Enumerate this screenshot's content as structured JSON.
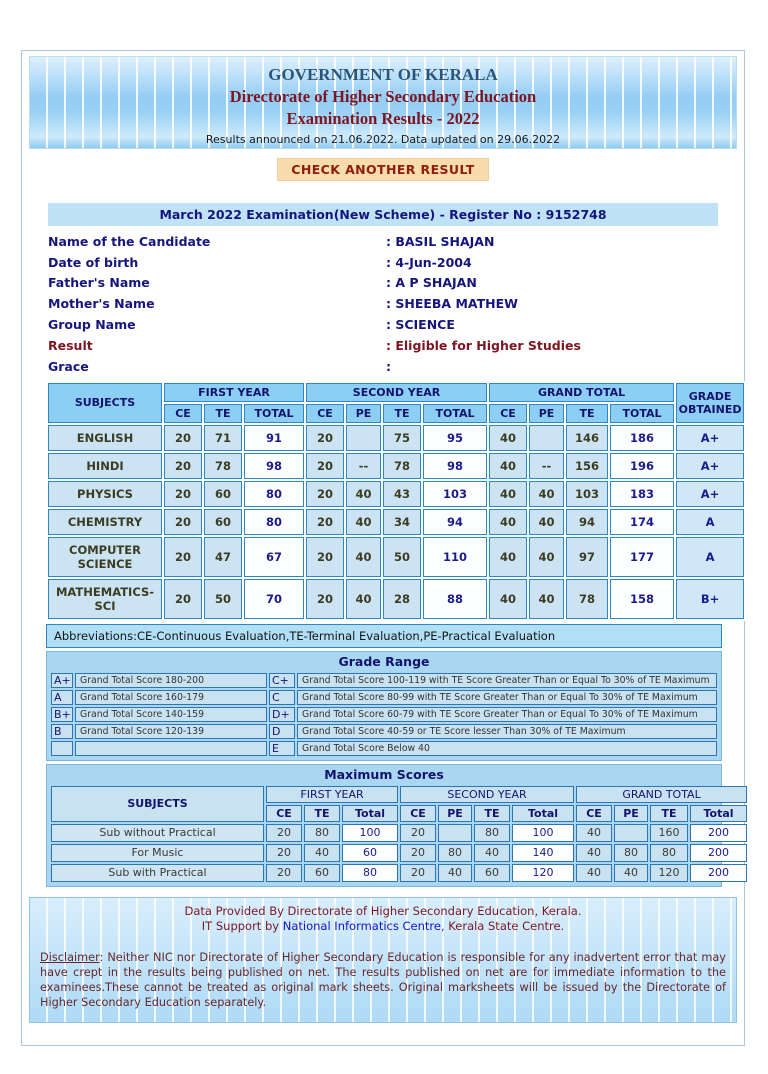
{
  "header": {
    "title1": "GOVERNMENT OF KERALA",
    "title2": "Directorate of Higher Secondary Education",
    "title3": "Examination Results - 2022",
    "announcement": "Results announced on 21.06.2022. Data updated on 29.06.2022"
  },
  "check_button_label": "CHECK ANOTHER RESULT",
  "register_bar": "March 2022 Examination(New Scheme) - Register No : 9152748",
  "details": {
    "rows": [
      {
        "label": "Name of the Candidate",
        "value": "BASIL SHAJAN",
        "accent": false
      },
      {
        "label": "Date of birth",
        "value": "4-Jun-2004",
        "accent": false
      },
      {
        "label": "Father's Name",
        "value": "A P SHAJAN",
        "accent": false
      },
      {
        "label": "Mother's Name",
        "value": "SHEEBA MATHEW",
        "accent": false
      },
      {
        "label": "Group Name",
        "value": "SCIENCE",
        "accent": false
      },
      {
        "label": "Result",
        "value": "Eligible for Higher Studies",
        "accent": true
      },
      {
        "label": "Grace",
        "value": "",
        "accent": false
      }
    ]
  },
  "subjects_table": {
    "subjects_header": "SUBJECTS",
    "grade_header": "GRADE OBTAINED",
    "groups": [
      {
        "label": "FIRST YEAR",
        "cols": [
          "CE",
          "TE",
          "TOTAL"
        ]
      },
      {
        "label": "SECOND YEAR",
        "cols": [
          "CE",
          "PE",
          "TE",
          "TOTAL"
        ]
      },
      {
        "label": "GRAND TOTAL",
        "cols": [
          "CE",
          "PE",
          "TE",
          "TOTAL"
        ]
      }
    ],
    "total_indices": [
      2,
      6,
      10
    ],
    "rows": [
      {
        "subject": "ENGLISH",
        "cells": [
          "20",
          "71",
          "91",
          "20",
          "",
          "75",
          "95",
          "40",
          "",
          "146",
          "186"
        ],
        "grade": "A+"
      },
      {
        "subject": "HINDI",
        "cells": [
          "20",
          "78",
          "98",
          "20",
          "--",
          "78",
          "98",
          "40",
          "--",
          "156",
          "196"
        ],
        "grade": "A+"
      },
      {
        "subject": "PHYSICS",
        "cells": [
          "20",
          "60",
          "80",
          "20",
          "40",
          "43",
          "103",
          "40",
          "40",
          "103",
          "183"
        ],
        "grade": "A+"
      },
      {
        "subject": "CHEMISTRY",
        "cells": [
          "20",
          "60",
          "80",
          "20",
          "40",
          "34",
          "94",
          "40",
          "40",
          "94",
          "174"
        ],
        "grade": "A"
      },
      {
        "subject": "COMPUTER SCIENCE",
        "cells": [
          "20",
          "47",
          "67",
          "20",
          "40",
          "50",
          "110",
          "40",
          "40",
          "97",
          "177"
        ],
        "grade": "A"
      },
      {
        "subject": "MATHEMATICS-SCI",
        "cells": [
          "20",
          "50",
          "70",
          "20",
          "40",
          "28",
          "88",
          "40",
          "40",
          "78",
          "158"
        ],
        "grade": "B+"
      }
    ]
  },
  "abbreviations": "Abbreviations:CE-Continuous Evaluation,TE-Terminal Evaluation,PE-Practical Evaluation",
  "grade_range": {
    "title": "Grade Range",
    "rows": [
      [
        "A+",
        "Grand Total Score 180-200",
        "C+",
        "Grand Total Score 100-119 with TE Score Greater Than or Equal To 30% of TE Maximum"
      ],
      [
        "A",
        "Grand Total Score 160-179",
        "C",
        "Grand Total Score 80-99 with TE Score Greater Than or Equal To 30% of TE Maximum"
      ],
      [
        "B+",
        "Grand Total Score 140-159",
        "D+",
        "Grand Total Score 60-79 with TE Score Greater Than or Equal To 30% of TE Maximum"
      ],
      [
        "B",
        "Grand Total Score 120-139",
        "D",
        "Grand Total Score 40-59 or TE Score lesser Than 30% of TE Maximum"
      ],
      [
        "",
        "",
        "E",
        "Grand Total Score Below 40"
      ]
    ]
  },
  "maximum_scores": {
    "title": "Maximum Scores",
    "subjects_header": "SUBJECTS",
    "groups": [
      {
        "label": "FIRST YEAR",
        "cols": [
          "CE",
          "TE",
          "Total"
        ]
      },
      {
        "label": "SECOND YEAR",
        "cols": [
          "CE",
          "PE",
          "TE",
          "Total"
        ]
      },
      {
        "label": "GRAND TOTAL",
        "cols": [
          "CE",
          "PE",
          "TE",
          "Total"
        ]
      }
    ],
    "total_indices": [
      2,
      6,
      10
    ],
    "rows": [
      {
        "label": "Sub without Practical",
        "cells": [
          "20",
          "80",
          "100",
          "20",
          "",
          "80",
          "100",
          "40",
          "",
          "160",
          "200"
        ]
      },
      {
        "label": "For Music",
        "cells": [
          "20",
          "40",
          "60",
          "20",
          "80",
          "40",
          "140",
          "40",
          "80",
          "80",
          "200"
        ]
      },
      {
        "label": "Sub with Practical",
        "cells": [
          "20",
          "60",
          "80",
          "20",
          "40",
          "60",
          "120",
          "40",
          "40",
          "120",
          "200"
        ]
      }
    ]
  },
  "footer": {
    "line1": "Data Provided By Directorate of Higher Secondary Education, Kerala.",
    "line2_prefix": "IT Support by ",
    "line2_link": "National Informatics Centre",
    "line2_suffix": ", Kerala State Centre.",
    "disclaimer_label": "Disclaimer",
    "disclaimer_text": ": Neither NIC nor Directorate of Higher Secondary Education is responsible for any inadvertent error that may have crept in the results being published on net. The results published on net are for immediate information to the examinees.These cannot be treated as original mark sheets. Original marksheets will be issued by the Directorate of Higher Secondary Education separately."
  },
  "colors": {
    "accent_maroon": "#7b1622",
    "navy": "#1b1b8e",
    "link_blue": "#1414cc",
    "table_header_blue": "#8dcff4",
    "cell_blue": "#cbe3f2",
    "panel_blue": "#a9d6f0",
    "button_bg": "#f8dcae"
  }
}
